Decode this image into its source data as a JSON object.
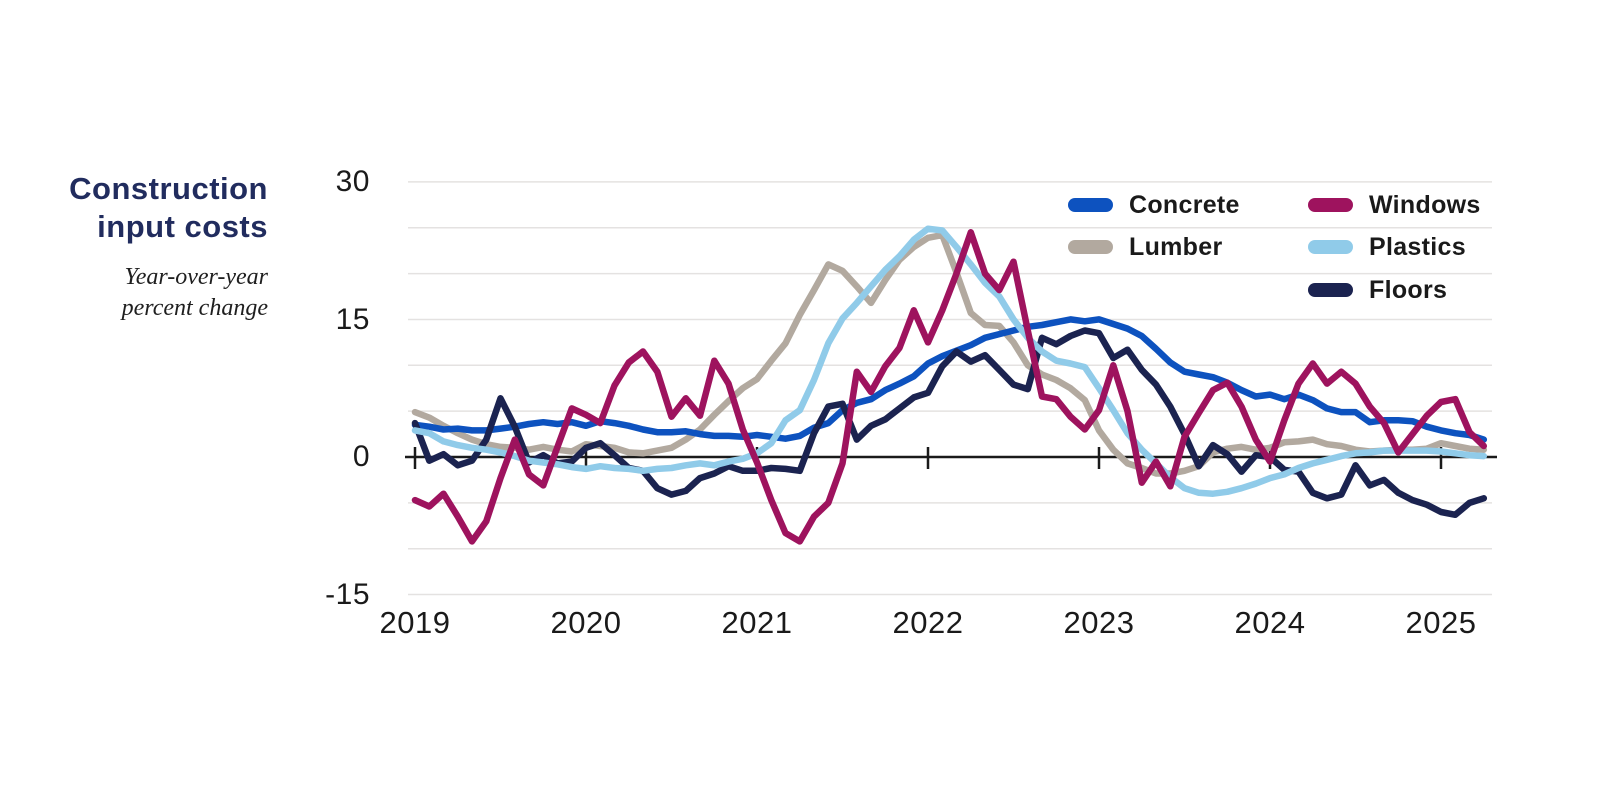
{
  "title": {
    "line1": "Construction",
    "line2": "input costs"
  },
  "subtitle": {
    "line1": "Year-over-year",
    "line2": "percent change"
  },
  "colors": {
    "title_text": "#212c5e",
    "axis_text": "#1a1a1a",
    "gridline": "#e4e2e1",
    "zero_line": "#1a1a1a",
    "background": "#ffffff"
  },
  "axes": {
    "y_labels": [
      "30",
      "15",
      "0",
      "-15"
    ],
    "x_labels": [
      "2019",
      "2020",
      "2021",
      "2022",
      "2023",
      "2024",
      "2025"
    ]
  },
  "legend": {
    "columns": [
      {
        "items": [
          {
            "label": "Concrete",
            "color": "#0d52bf"
          },
          {
            "label": "Lumber",
            "color": "#b2a99f"
          }
        ]
      },
      {
        "items": [
          {
            "label": "Windows",
            "color": "#9e135e"
          },
          {
            "label": "Plastics",
            "color": "#90cbe9"
          },
          {
            "label": "Floors",
            "color": "#1b2350"
          }
        ]
      }
    ]
  },
  "chart_data": {
    "type": "line",
    "title": "Construction input costs",
    "subtitle": "Year-over-year percent change",
    "x_start": "2019-01",
    "x_end": "2025-04",
    "x_interval": "monthly",
    "x_tick_labels": [
      "2019",
      "2020",
      "2021",
      "2022",
      "2023",
      "2024",
      "2025"
    ],
    "ylabel": "percent change (year-over-year)",
    "ylim": [
      -15,
      30
    ],
    "y_labeled_ticks": [
      30,
      15,
      0,
      -15
    ],
    "y_gridlines": [
      30,
      25,
      20,
      15,
      10,
      5,
      -5,
      -10,
      -15
    ],
    "grid": true,
    "legend_position": "top-right",
    "series": [
      {
        "name": "Concrete",
        "color": "#0d52bf",
        "values": [
          3.5,
          3.3,
          3.0,
          3.1,
          2.9,
          2.9,
          3.1,
          3.3,
          3.6,
          3.8,
          3.6,
          3.8,
          3.4,
          3.9,
          3.7,
          3.4,
          3.0,
          2.7,
          2.7,
          2.8,
          2.5,
          2.3,
          2.3,
          2.2,
          2.4,
          2.2,
          2.0,
          2.3,
          3.2,
          3.7,
          5.1,
          5.9,
          6.3,
          7.3,
          8.0,
          8.8,
          10.2,
          11.0,
          11.6,
          12.2,
          13.0,
          13.4,
          13.8,
          14.2,
          14.4,
          14.7,
          15.0,
          14.8,
          15.0,
          14.5,
          14.0,
          13.2,
          11.8,
          10.3,
          9.3,
          9.0,
          8.7,
          8.1,
          7.3,
          6.6,
          6.8,
          6.3,
          6.8,
          6.2,
          5.3,
          4.9,
          4.9,
          3.8,
          4.0,
          4.0,
          3.9,
          3.3,
          2.9,
          2.6,
          2.4,
          1.9
        ]
      },
      {
        "name": "Lumber",
        "color": "#b2a99f",
        "values": [
          4.9,
          4.3,
          3.4,
          2.6,
          1.9,
          1.4,
          1.1,
          1.0,
          0.8,
          1.1,
          0.8,
          0.6,
          1.4,
          1.2,
          1.0,
          0.5,
          0.4,
          0.7,
          1.0,
          1.9,
          3.0,
          4.6,
          6.1,
          7.5,
          8.5,
          10.5,
          12.4,
          15.5,
          18.2,
          21.0,
          20.3,
          18.6,
          16.8,
          19.3,
          21.5,
          22.9,
          23.9,
          24.2,
          20.1,
          15.7,
          14.4,
          14.3,
          12.5,
          10.0,
          9.0,
          8.4,
          7.5,
          6.2,
          2.9,
          0.8,
          -0.7,
          -1.2,
          -1.8,
          -1.8,
          -1.5,
          -1.0,
          0.5,
          0.9,
          1.1,
          0.8,
          1.0,
          1.6,
          1.7,
          1.9,
          1.4,
          1.2,
          0.8,
          0.6,
          0.7,
          0.8,
          0.8,
          0.9,
          1.5,
          1.2,
          0.9,
          0.8
        ]
      },
      {
        "name": "Windows",
        "color": "#9e135e",
        "values": [
          -4.7,
          -5.4,
          -4.0,
          -6.5,
          -9.2,
          -7.0,
          -2.3,
          1.9,
          -1.9,
          -3.1,
          1.1,
          5.3,
          4.6,
          3.7,
          7.8,
          10.3,
          11.5,
          9.3,
          4.4,
          6.4,
          4.5,
          10.5,
          8.0,
          3.0,
          -0.6,
          -4.7,
          -8.3,
          -9.2,
          -6.5,
          -5.0,
          -0.7,
          9.3,
          7.1,
          9.9,
          11.9,
          16.0,
          12.5,
          16.0,
          20.0,
          24.5,
          20.0,
          18.2,
          21.3,
          13.8,
          6.6,
          6.3,
          4.4,
          3.0,
          5.1,
          10.0,
          5.0,
          -2.8,
          -0.5,
          -3.2,
          2.2,
          4.8,
          7.3,
          8.1,
          5.5,
          1.9,
          -0.5,
          4.0,
          8.0,
          10.2,
          8.0,
          9.3,
          8.0,
          5.5,
          3.7,
          0.5,
          2.5,
          4.5,
          6.0,
          6.3,
          2.7,
          1.2
        ]
      },
      {
        "name": "Plastics",
        "color": "#90cbe9",
        "values": [
          2.9,
          2.6,
          1.7,
          1.3,
          1.0,
          0.8,
          0.5,
          0.1,
          -0.4,
          -0.6,
          -0.8,
          -1.1,
          -1.3,
          -1.0,
          -1.2,
          -1.3,
          -1.5,
          -1.3,
          -1.2,
          -0.9,
          -0.7,
          -0.9,
          -0.5,
          -0.2,
          0.4,
          1.5,
          4.0,
          5.1,
          8.4,
          12.4,
          15.1,
          16.8,
          18.6,
          20.4,
          21.9,
          23.7,
          24.9,
          24.7,
          22.9,
          21.0,
          19.0,
          17.5,
          15.0,
          13.0,
          11.5,
          10.5,
          10.2,
          9.8,
          7.5,
          5.1,
          2.6,
          0.8,
          -0.7,
          -2.2,
          -3.4,
          -3.9,
          -4.0,
          -3.8,
          -3.4,
          -2.9,
          -2.3,
          -1.9,
          -1.2,
          -0.7,
          -0.3,
          0.1,
          0.4,
          0.5,
          0.7,
          0.7,
          0.7,
          0.7,
          0.6,
          0.4,
          0.2,
          0.1
        ]
      },
      {
        "name": "Floors",
        "color": "#1b2350",
        "values": [
          3.7,
          -0.4,
          0.3,
          -0.9,
          -0.4,
          1.9,
          6.4,
          3.3,
          -0.6,
          0.2,
          -0.7,
          -0.5,
          1.0,
          1.5,
          0.2,
          -1.2,
          -1.5,
          -3.4,
          -4.1,
          -3.7,
          -2.3,
          -1.8,
          -1.0,
          -1.5,
          -1.5,
          -1.2,
          -1.3,
          -1.5,
          2.6,
          5.5,
          5.8,
          1.9,
          3.4,
          4.1,
          5.3,
          6.5,
          7.0,
          9.9,
          11.5,
          10.4,
          11.1,
          9.5,
          7.9,
          7.4,
          13.0,
          12.3,
          13.2,
          13.8,
          13.5,
          10.8,
          11.7,
          9.5,
          7.9,
          5.5,
          2.5,
          -1.0,
          1.3,
          0.3,
          -1.6,
          0.2,
          0.0,
          -1.4,
          -1.6,
          -3.9,
          -4.5,
          -4.1,
          -0.9,
          -3.1,
          -2.5,
          -3.9,
          -4.7,
          -5.2,
          -6.0,
          -6.3,
          -5.0,
          -4.5
        ]
      }
    ]
  }
}
